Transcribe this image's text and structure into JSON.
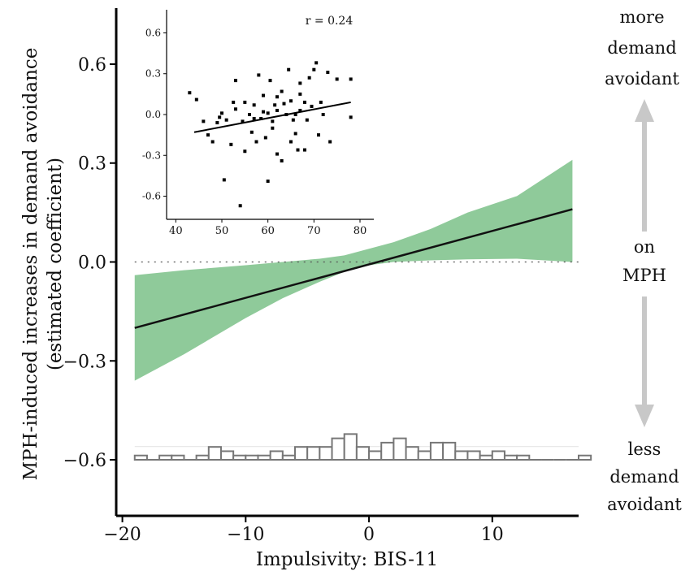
{
  "chart_data": [
    {
      "type": "line",
      "role": "main-regression",
      "xlabel": "Impulsivity: BIS-11",
      "ylabel_lines": [
        "MPH-induced increases in demand avoidance",
        "(estimated coefficient)"
      ],
      "xlim": [
        -20.5,
        17
      ],
      "ylim": [
        -0.77,
        0.77
      ],
      "x_ticks": [
        -20,
        -10,
        0,
        10
      ],
      "x_tick_labels": [
        "−20",
        "−10",
        "0",
        "10"
      ],
      "y_ticks": [
        0.6,
        0.3,
        0.0,
        -0.3,
        -0.6
      ],
      "y_tick_labels": [
        "0.6",
        "0.3",
        "0.0",
        "−0.3",
        "−0.6"
      ],
      "reference_line_y": 0.0,
      "fit_line": {
        "x": [
          -19,
          16.5
        ],
        "y": [
          -0.2,
          0.16
        ]
      },
      "confidence_band": {
        "x": [
          -19,
          -15,
          -10,
          -7,
          -4,
          -2,
          0,
          2,
          5,
          8,
          12,
          16.5
        ],
        "upper": [
          -0.04,
          -0.025,
          -0.01,
          0.0,
          0.01,
          0.02,
          0.04,
          0.06,
          0.1,
          0.15,
          0.2,
          0.31
        ],
        "lower": [
          -0.36,
          -0.28,
          -0.17,
          -0.11,
          -0.06,
          -0.03,
          -0.01,
          0.0,
          0.005,
          0.008,
          0.01,
          0.0
        ]
      },
      "colors": {
        "band": "#8fca9a",
        "line": "#111111",
        "axis": "#000000",
        "histogram": "#777777"
      },
      "histogram": {
        "baseline_y": -0.6,
        "counts": [
          1,
          0,
          1,
          1,
          0,
          1,
          3,
          2,
          1,
          1,
          1,
          2,
          1,
          3,
          3,
          3,
          5,
          6,
          3,
          2,
          4,
          5,
          3,
          2,
          4,
          4,
          2,
          2,
          1,
          2,
          1,
          1,
          0,
          0,
          0,
          0,
          1
        ],
        "first_bin_left": -19,
        "bin_width": 1,
        "scale_y_per_count": 0.013
      },
      "side_labels": {
        "top": [
          "more",
          "demand",
          "avoidant"
        ],
        "middle": [
          "on",
          "MPH"
        ],
        "bottom": [
          "less",
          "demand",
          "avoidant"
        ]
      }
    },
    {
      "type": "scatter",
      "role": "inset",
      "annotation": "r = 0.24",
      "xlim": [
        38,
        83
      ],
      "ylim": [
        -0.77,
        0.77
      ],
      "x_ticks": [
        40,
        50,
        60,
        70,
        80
      ],
      "x_tick_labels": [
        "40",
        "50",
        "60",
        "70",
        "80"
      ],
      "y_ticks": [
        0.6,
        0.3,
        0.0,
        -0.3,
        -0.6
      ],
      "y_tick_labels": [
        "0.6",
        "0.3",
        "0.0",
        "-0.3",
        "-0.6"
      ],
      "fit_line": {
        "x": [
          44,
          78
        ],
        "y": [
          -0.13,
          0.09
        ]
      },
      "points": [
        [
          43,
          0.16
        ],
        [
          44.5,
          0.11
        ],
        [
          46,
          -0.05
        ],
        [
          47,
          -0.15
        ],
        [
          48,
          -0.2
        ],
        [
          49,
          -0.06
        ],
        [
          49.5,
          -0.02
        ],
        [
          50,
          0.01
        ],
        [
          50.5,
          -0.48
        ],
        [
          51,
          -0.04
        ],
        [
          52,
          -0.22
        ],
        [
          52.5,
          0.09
        ],
        [
          53,
          0.25
        ],
        [
          54,
          -0.67
        ],
        [
          54.5,
          -0.05
        ],
        [
          55,
          -0.27
        ],
        [
          55,
          0.09
        ],
        [
          56,
          0.0
        ],
        [
          56.5,
          -0.13
        ],
        [
          57,
          0.07
        ],
        [
          57.5,
          -0.2
        ],
        [
          58,
          0.29
        ],
        [
          58.5,
          -0.03
        ],
        [
          59,
          0.14
        ],
        [
          59.5,
          -0.17
        ],
        [
          60,
          -0.49
        ],
        [
          60,
          0.01
        ],
        [
          60.5,
          0.25
        ],
        [
          61,
          -0.05
        ],
        [
          61,
          -0.1
        ],
        [
          61.5,
          0.07
        ],
        [
          62,
          -0.29
        ],
        [
          62,
          0.03
        ],
        [
          63,
          -0.34
        ],
        [
          63,
          0.17
        ],
        [
          63.5,
          0.08
        ],
        [
          64,
          0.0
        ],
        [
          64.5,
          0.33
        ],
        [
          65,
          -0.2
        ],
        [
          65,
          0.1
        ],
        [
          65.5,
          -0.04
        ],
        [
          66,
          -0.14
        ],
        [
          66.5,
          -0.26
        ],
        [
          67,
          0.23
        ],
        [
          67,
          0.03
        ],
        [
          68,
          -0.26
        ],
        [
          68,
          0.09
        ],
        [
          68.5,
          -0.04
        ],
        [
          69,
          0.27
        ],
        [
          69.5,
          0.06
        ],
        [
          70,
          0.33
        ],
        [
          70.5,
          0.38
        ],
        [
          71,
          -0.15
        ],
        [
          71.5,
          0.09
        ],
        [
          72,
          0.0
        ],
        [
          73,
          0.31
        ],
        [
          73.5,
          -0.2
        ],
        [
          75,
          0.26
        ],
        [
          78,
          0.26
        ],
        [
          78,
          -0.02
        ],
        [
          59,
          0.02
        ],
        [
          62,
          0.13
        ],
        [
          66,
          0.0
        ],
        [
          67,
          0.15
        ],
        [
          57,
          -0.03
        ],
        [
          53,
          0.04
        ]
      ]
    }
  ]
}
